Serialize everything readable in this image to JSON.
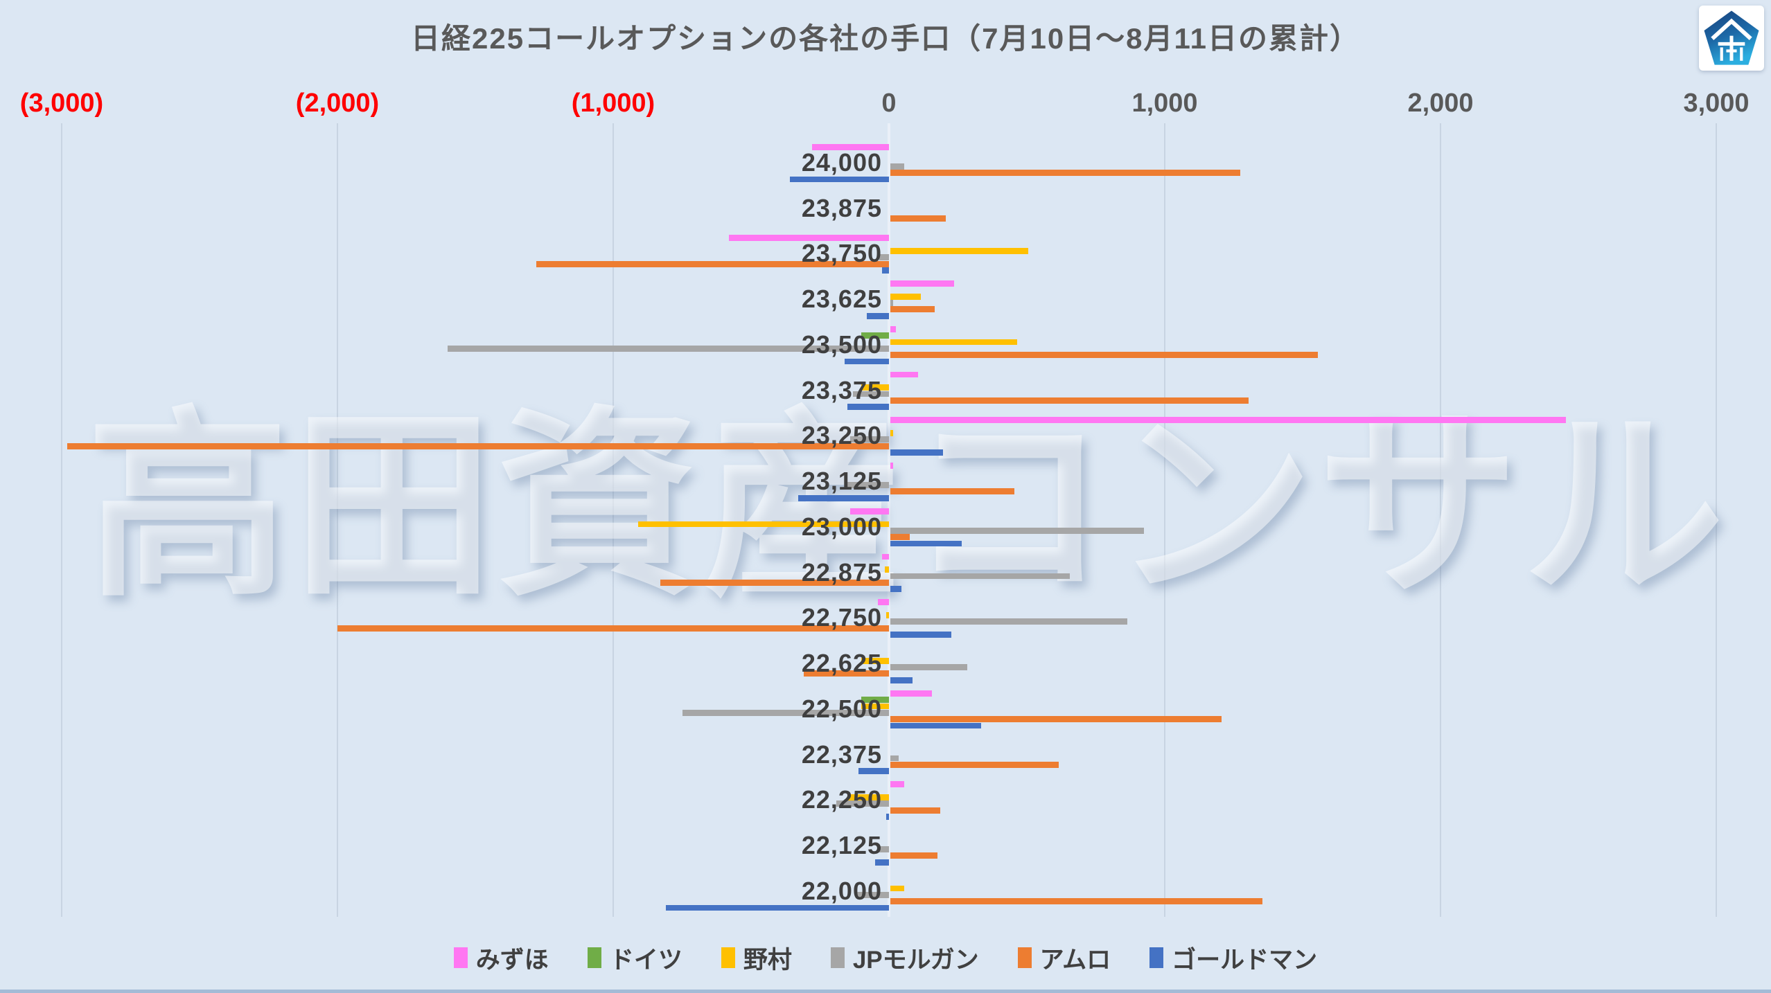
{
  "title": "日経225コールオプションの各社の手口（7月10日〜8月11日の累計）",
  "watermark": "高田資産コンサル",
  "page_background": "#dce7f3",
  "chart_data": {
    "type": "bar",
    "orientation": "horizontal",
    "title": "日経225コールオプションの各社の手口（7月10日〜8月11日の累計）",
    "grid": true,
    "legend_position": "bottom",
    "x_axis": {
      "min": -3000,
      "max": 3000,
      "tick_step": 1000,
      "tick_labels": [
        "(3,000)",
        "(2,000)",
        "(1,000)",
        "0",
        "1,000",
        "2,000",
        "3,000"
      ],
      "tick_values": [
        -3000,
        -2000,
        -1000,
        0,
        1000,
        2000,
        3000
      ],
      "negative_label_color": "#ff0000",
      "label_color": "#595959"
    },
    "categories": [
      "24,000",
      "23,875",
      "23,750",
      "23,625",
      "23,500",
      "23,375",
      "23,250",
      "23,125",
      "23,000",
      "22,875",
      "22,750",
      "22,625",
      "22,500",
      "22,375",
      "22,250",
      "22,125",
      "22,000"
    ],
    "series": [
      {
        "name": "みずほ",
        "color": "#ff77f2",
        "values": [
          -280,
          0,
          -580,
          230,
          20,
          100,
          2450,
          10,
          -140,
          -25,
          -40,
          0,
          150,
          0,
          50,
          0,
          0
        ]
      },
      {
        "name": "ドイツ",
        "color": "#70ad47",
        "values": [
          0,
          0,
          0,
          0,
          -100,
          0,
          0,
          0,
          0,
          0,
          0,
          0,
          -100,
          0,
          0,
          0,
          0
        ]
      },
      {
        "name": "野村",
        "color": "#ffc000",
        "values": [
          0,
          0,
          500,
          110,
          460,
          -100,
          10,
          0,
          -910,
          -15,
          -10,
          -100,
          -100,
          0,
          -150,
          0,
          50
        ]
      },
      {
        "name": "JPモルガン",
        "color": "#a6a6a6",
        "values": [
          50,
          0,
          -35,
          10,
          -1600,
          -130,
          -140,
          -150,
          920,
          650,
          860,
          280,
          -750,
          30,
          -190,
          -40,
          -120
        ]
      },
      {
        "name": "アムロ",
        "color": "#ed7d31",
        "values": [
          1270,
          200,
          -1280,
          160,
          1550,
          1300,
          -2980,
          450,
          70,
          -830,
          -2000,
          -310,
          1200,
          610,
          180,
          170,
          1350
        ]
      },
      {
        "name": "ゴールドマン",
        "color": "#4472c4",
        "values": [
          -360,
          0,
          -25,
          -80,
          -160,
          -150,
          190,
          -330,
          260,
          40,
          220,
          80,
          330,
          -110,
          -10,
          -50,
          -810
        ]
      }
    ]
  }
}
